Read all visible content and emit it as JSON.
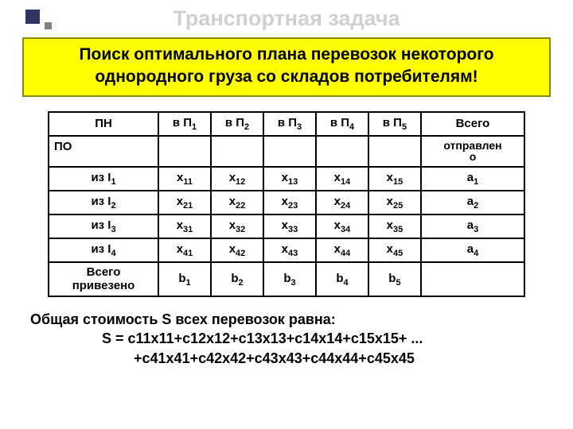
{
  "title": "Транспортная задача",
  "banner": "Поиск оптимального плана перевозок некоторого однородного груза со складов потребителям!",
  "table": {
    "col_headers": [
      "ПН",
      "в П₁",
      "в П₂",
      "в П₃",
      "в П₄",
      "в П₅",
      "Всего"
    ],
    "po_label": "ПО",
    "po_right": "отправлено",
    "rows": [
      {
        "label": "из I₁",
        "cells": [
          "x₁₁",
          "x₁₂",
          "x₁₃",
          "x₁₄",
          "x₁₅"
        ],
        "total": "a₁"
      },
      {
        "label": "из I₂",
        "cells": [
          "x₂₁",
          "x₂₂",
          "x₂₃",
          "x₂₄",
          "x₂₅"
        ],
        "total": "a₂"
      },
      {
        "label": "из I₃",
        "cells": [
          "x₃₁",
          "x₃₂",
          "x₃₃",
          "x₃₄",
          "x₃₅"
        ],
        "total": "a₃"
      },
      {
        "label": "из I₄",
        "cells": [
          "x₄₁",
          "x₄₂",
          "x₄₃",
          "x₄₄",
          "x₄₅"
        ],
        "total": "a₄"
      }
    ],
    "bottom_label": "Всего привезено",
    "bottom_cells": [
      "b₁",
      "b₂",
      "b₃",
      "b₄",
      "b₅"
    ],
    "bottom_total": ""
  },
  "footer": {
    "line1": "Общая стоимость S всех перевозок равна:",
    "line2": "S = с11x11+c12x12+c13x13+c14x14+c15x15+ ...",
    "line3": "+c41x41+c42x42+c43x43+c44x44+c45x45"
  },
  "colors": {
    "title_fg": "#d0d0d0",
    "banner_bg": "#ffff00",
    "banner_border": "#8a8a00",
    "square_big": "#333366",
    "square_small": "#808080",
    "border": "#000000",
    "bg": "#ffffff"
  }
}
